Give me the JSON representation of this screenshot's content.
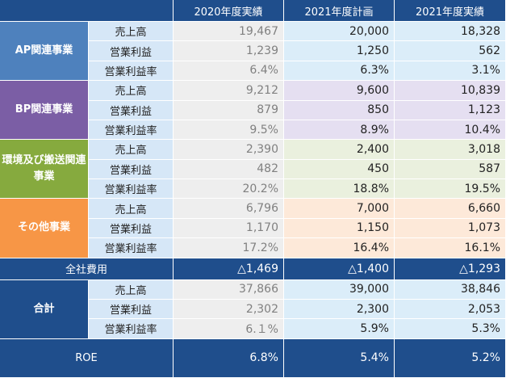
{
  "header": {
    "corner": "",
    "columns": [
      "2020年度実績",
      "2021年度計画",
      "2021年度実績"
    ]
  },
  "segments": [
    {
      "name": "AP関連事業",
      "color": "#4e81bd",
      "tints": [
        "#eeeeee",
        "#dbedf9",
        "#dbedf9"
      ],
      "rows": [
        {
          "label": "売上高",
          "values": [
            "19,467",
            "20,000",
            "18,328"
          ]
        },
        {
          "label": "営業利益",
          "values": [
            "1,239",
            "1,250",
            "562"
          ]
        },
        {
          "label": "営業利益率",
          "values": [
            "6.4%",
            "6.3%",
            "3.1%"
          ]
        }
      ]
    },
    {
      "name": "BP関連事業",
      "color": "#7b5ea5",
      "tints": [
        "#eeeeee",
        "#e5dff1",
        "#e5dff1"
      ],
      "rows": [
        {
          "label": "売上高",
          "values": [
            "9,212",
            "9,600",
            "10,839"
          ]
        },
        {
          "label": "営業利益",
          "values": [
            "879",
            "850",
            "1,123"
          ]
        },
        {
          "label": "営業利益率",
          "values": [
            "9.5%",
            "8.9%",
            "10.4%"
          ]
        }
      ]
    },
    {
      "name": "環境及び搬送関連事業",
      "color": "#86aa3e",
      "tints": [
        "#eeeeee",
        "#eaf0de",
        "#eaf0de"
      ],
      "rows": [
        {
          "label": "売上高",
          "values": [
            "2,390",
            "2,400",
            "3,018"
          ]
        },
        {
          "label": "営業利益",
          "values": [
            "482",
            "450",
            "587"
          ]
        },
        {
          "label": "営業利益率",
          "values": [
            "20.2%",
            "18.8%",
            "19.5%"
          ]
        }
      ]
    },
    {
      "name": "その他事業",
      "color": "#f79646",
      "tints": [
        "#eeeeee",
        "#fde9d9",
        "#fde9d9"
      ],
      "rows": [
        {
          "label": "売上高",
          "values": [
            "6,796",
            "7,000",
            "6,660"
          ]
        },
        {
          "label": "営業利益",
          "values": [
            "1,170",
            "1,150",
            "1,073"
          ]
        },
        {
          "label": "営業利益率",
          "values": [
            "17.2%",
            "16.4%",
            "16.1%"
          ]
        }
      ]
    }
  ],
  "corporate": {
    "label": "全社費用",
    "values": [
      "△1,469",
      "△1,400",
      "△1,293"
    ]
  },
  "total": {
    "name": "合計",
    "color": "#1f4e8c",
    "tints": [
      "#eeeeee",
      "#dbedf9",
      "#dbedf9"
    ],
    "rows": [
      {
        "label": "売上高",
        "values": [
          "37,866",
          "39,000",
          "38,846"
        ]
      },
      {
        "label": "営業利益",
        "values": [
          "2,302",
          "2,300",
          "2,053"
        ]
      },
      {
        "label": "営業利益率",
        "values": [
          "6.１%",
          "5.9%",
          "5.3%"
        ]
      }
    ]
  },
  "roe": {
    "label": "ROE",
    "values": [
      "6.8%",
      "5.4%",
      "5.2%"
    ]
  },
  "colors": {
    "header_bg": "#1f4e8c",
    "label_bg": "#d6e7f7",
    "dim_text": "#808080",
    "body_text": "#222222"
  }
}
